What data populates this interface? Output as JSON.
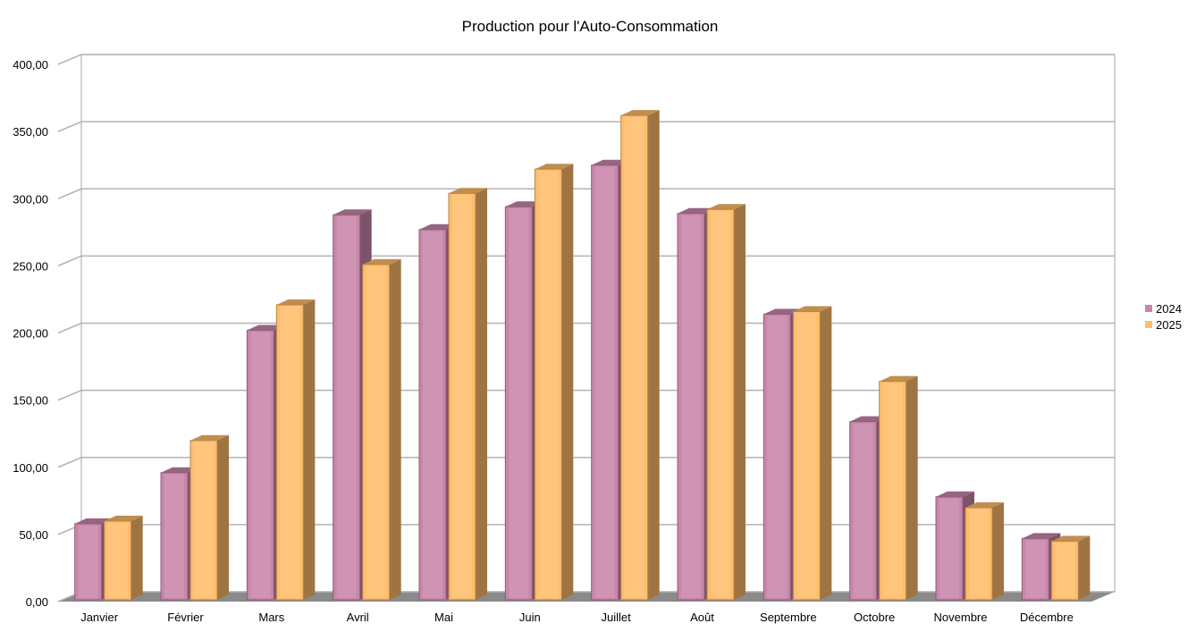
{
  "chart_data": {
    "type": "bar",
    "title": "Production pour l'Auto-Consommation",
    "xlabel": "",
    "ylabel": "",
    "categories": [
      "Janvier",
      "Février",
      "Mars",
      "Avril",
      "Mai",
      "Juin",
      "Juillet",
      "Août",
      "Septembre",
      "Octobre",
      "Novembre",
      "Décembre"
    ],
    "series": [
      {
        "name": "2024",
        "color": "#c986aa",
        "values": [
          58,
          96,
          202,
          288,
          277,
          294,
          325,
          289,
          214,
          134,
          78,
          47
        ]
      },
      {
        "name": "2025",
        "color": "#ffbd6b",
        "values": [
          60,
          120,
          221,
          251,
          304,
          322,
          362,
          292,
          216,
          164,
          70,
          45
        ]
      }
    ],
    "ylim": [
      0,
      400
    ],
    "yticks": [
      "0,00",
      "50,00",
      "100,00",
      "150,00",
      "200,00",
      "250,00",
      "300,00",
      "350,00",
      "400,00"
    ],
    "grid": true,
    "legend_position": "right",
    "style": "3d"
  }
}
